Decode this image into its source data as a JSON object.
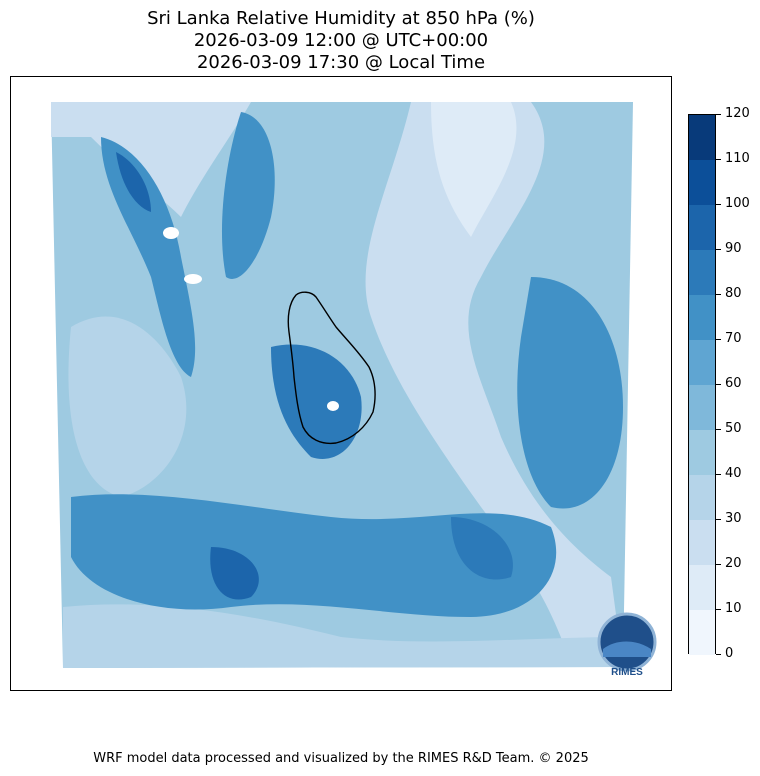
{
  "title": {
    "line1": "Sri Lanka Relative Humidity at 850 hPa (%)",
    "line2": "2026-03-09 12:00 @ UTC+00:00",
    "line3": "2026-03-09 17:30 @ Local Time"
  },
  "colorbar": {
    "ticks": [
      "0",
      "10",
      "20",
      "30",
      "40",
      "50",
      "60",
      "70",
      "80",
      "90",
      "100",
      "110",
      "120"
    ],
    "colors": [
      "#f0f6fd",
      "#deebf7",
      "#cadef0",
      "#b5d4e9",
      "#9ecae1",
      "#7fb8da",
      "#5fa5d2",
      "#4191c6",
      "#2c7ab9",
      "#1c65ab",
      "#0c4f99",
      "#083a7a"
    ]
  },
  "logo": {
    "text": "RIMES"
  },
  "footer": "WRF model data processed and visualized by the RIMES R&D Team. © 2025"
}
